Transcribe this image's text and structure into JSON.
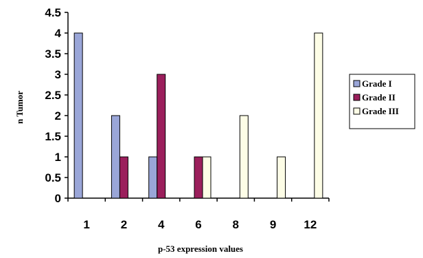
{
  "chart_data": {
    "type": "bar",
    "title": "",
    "xlabel": "p-53 expression values",
    "ylabel": "n Tumor",
    "categories": [
      "1",
      "2",
      "4",
      "6",
      "8",
      "9",
      "12"
    ],
    "series": [
      {
        "name": "Grade I",
        "values": [
          4,
          2,
          1,
          0,
          0,
          0,
          0
        ],
        "color": "#9aa6d8"
      },
      {
        "name": "Grade II",
        "values": [
          0,
          1,
          3,
          1,
          0,
          0,
          0
        ],
        "color": "#9b1f5c"
      },
      {
        "name": "Grade III",
        "values": [
          0,
          0,
          0,
          1,
          2,
          1,
          4
        ],
        "color": "#fdfde6"
      }
    ],
    "ylim": [
      0,
      4.5
    ],
    "yticks": [
      "0",
      "0.5",
      "1",
      "1.5",
      "2",
      "2.5",
      "3",
      "3.5",
      "4",
      "4.5"
    ],
    "grid": false,
    "legend_position": "right"
  }
}
